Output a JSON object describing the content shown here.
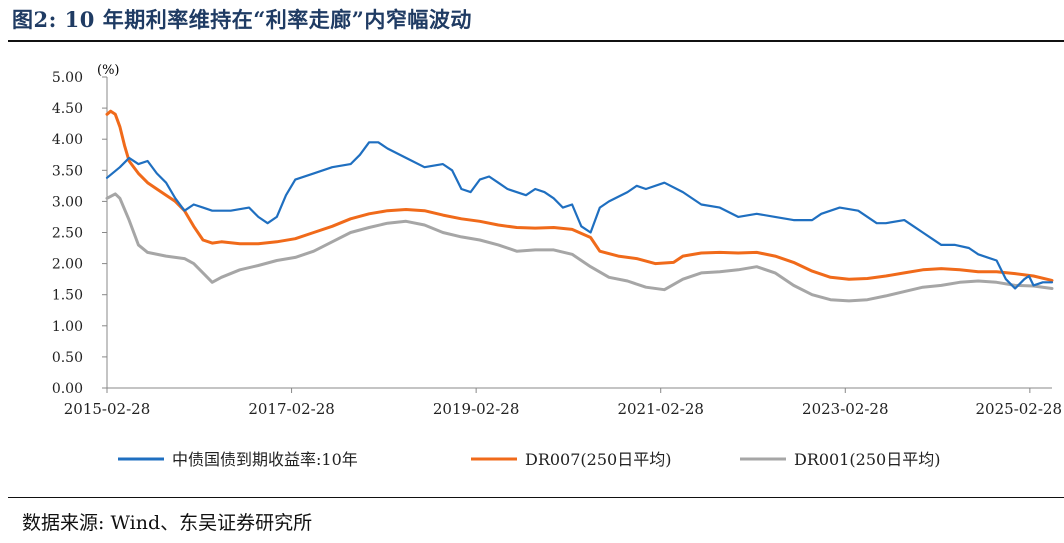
{
  "figure": {
    "title": "图2:  10 年期利率维持在“利率走廊”内窄幅波动",
    "source": "数据来源:  Wind、东吴证券研究所"
  },
  "chart_data": {
    "type": "line",
    "unit": "(%)",
    "ylim": [
      0,
      5
    ],
    "yticks": [
      "0.00",
      "0.50",
      "1.00",
      "1.50",
      "2.00",
      "2.50",
      "3.00",
      "3.50",
      "4.00",
      "4.50",
      "5.00"
    ],
    "xlim": [
      2015.16,
      2025.4
    ],
    "xticks": [
      {
        "x": 2015.16,
        "label": "2015-02-28"
      },
      {
        "x": 2017.16,
        "label": "2017-02-28"
      },
      {
        "x": 2019.16,
        "label": "2019-02-28"
      },
      {
        "x": 2021.16,
        "label": "2021-02-28"
      },
      {
        "x": 2023.16,
        "label": "2023-02-28"
      },
      {
        "x": 2025.16,
        "label": "2025-02-28"
      }
    ],
    "grid": false,
    "legend_position": "bottom",
    "series": [
      {
        "name": "中债国债到期收益率:10年",
        "color": "#1f6fc0",
        "points": [
          [
            2015.16,
            3.38
          ],
          [
            2015.3,
            3.55
          ],
          [
            2015.4,
            3.7
          ],
          [
            2015.5,
            3.6
          ],
          [
            2015.6,
            3.65
          ],
          [
            2015.7,
            3.45
          ],
          [
            2015.8,
            3.3
          ],
          [
            2015.9,
            3.05
          ],
          [
            2016.0,
            2.85
          ],
          [
            2016.1,
            2.95
          ],
          [
            2016.2,
            2.9
          ],
          [
            2016.3,
            2.85
          ],
          [
            2016.5,
            2.85
          ],
          [
            2016.7,
            2.9
          ],
          [
            2016.8,
            2.75
          ],
          [
            2016.9,
            2.65
          ],
          [
            2017.0,
            2.75
          ],
          [
            2017.1,
            3.1
          ],
          [
            2017.2,
            3.35
          ],
          [
            2017.4,
            3.45
          ],
          [
            2017.6,
            3.55
          ],
          [
            2017.8,
            3.6
          ],
          [
            2017.9,
            3.75
          ],
          [
            2018.0,
            3.95
          ],
          [
            2018.1,
            3.95
          ],
          [
            2018.2,
            3.85
          ],
          [
            2018.4,
            3.7
          ],
          [
            2018.6,
            3.55
          ],
          [
            2018.8,
            3.6
          ],
          [
            2018.9,
            3.5
          ],
          [
            2019.0,
            3.2
          ],
          [
            2019.1,
            3.15
          ],
          [
            2019.2,
            3.35
          ],
          [
            2019.3,
            3.4
          ],
          [
            2019.4,
            3.3
          ],
          [
            2019.5,
            3.2
          ],
          [
            2019.7,
            3.1
          ],
          [
            2019.8,
            3.2
          ],
          [
            2019.9,
            3.15
          ],
          [
            2020.0,
            3.05
          ],
          [
            2020.1,
            2.9
          ],
          [
            2020.2,
            2.95
          ],
          [
            2020.3,
            2.6
          ],
          [
            2020.4,
            2.5
          ],
          [
            2020.5,
            2.9
          ],
          [
            2020.6,
            3.0
          ],
          [
            2020.8,
            3.15
          ],
          [
            2020.9,
            3.25
          ],
          [
            2021.0,
            3.2
          ],
          [
            2021.2,
            3.3
          ],
          [
            2021.4,
            3.15
          ],
          [
            2021.6,
            2.95
          ],
          [
            2021.8,
            2.9
          ],
          [
            2022.0,
            2.75
          ],
          [
            2022.2,
            2.8
          ],
          [
            2022.4,
            2.75
          ],
          [
            2022.6,
            2.7
          ],
          [
            2022.8,
            2.7
          ],
          [
            2022.9,
            2.8
          ],
          [
            2023.1,
            2.9
          ],
          [
            2023.3,
            2.85
          ],
          [
            2023.5,
            2.65
          ],
          [
            2023.6,
            2.65
          ],
          [
            2023.8,
            2.7
          ],
          [
            2023.9,
            2.6
          ],
          [
            2024.0,
            2.5
          ],
          [
            2024.1,
            2.4
          ],
          [
            2024.2,
            2.3
          ],
          [
            2024.35,
            2.3
          ],
          [
            2024.5,
            2.25
          ],
          [
            2024.6,
            2.15
          ],
          [
            2024.7,
            2.1
          ],
          [
            2024.8,
            2.05
          ],
          [
            2024.9,
            1.75
          ],
          [
            2025.0,
            1.6
          ],
          [
            2025.1,
            1.75
          ],
          [
            2025.15,
            1.8
          ],
          [
            2025.2,
            1.65
          ],
          [
            2025.3,
            1.7
          ],
          [
            2025.4,
            1.7
          ]
        ]
      },
      {
        "name": "DR007(250日平均)",
        "color": "#f06a1a",
        "points": [
          [
            2015.16,
            4.4
          ],
          [
            2015.2,
            4.45
          ],
          [
            2015.25,
            4.4
          ],
          [
            2015.3,
            4.2
          ],
          [
            2015.35,
            3.9
          ],
          [
            2015.4,
            3.65
          ],
          [
            2015.5,
            3.45
          ],
          [
            2015.6,
            3.3
          ],
          [
            2015.7,
            3.2
          ],
          [
            2015.8,
            3.1
          ],
          [
            2015.9,
            3.0
          ],
          [
            2016.0,
            2.85
          ],
          [
            2016.1,
            2.6
          ],
          [
            2016.2,
            2.38
          ],
          [
            2016.3,
            2.33
          ],
          [
            2016.4,
            2.35
          ],
          [
            2016.6,
            2.32
          ],
          [
            2016.8,
            2.32
          ],
          [
            2017.0,
            2.35
          ],
          [
            2017.2,
            2.4
          ],
          [
            2017.4,
            2.5
          ],
          [
            2017.6,
            2.6
          ],
          [
            2017.8,
            2.72
          ],
          [
            2018.0,
            2.8
          ],
          [
            2018.2,
            2.85
          ],
          [
            2018.4,
            2.87
          ],
          [
            2018.6,
            2.85
          ],
          [
            2018.8,
            2.78
          ],
          [
            2019.0,
            2.72
          ],
          [
            2019.2,
            2.68
          ],
          [
            2019.4,
            2.62
          ],
          [
            2019.6,
            2.58
          ],
          [
            2019.8,
            2.57
          ],
          [
            2020.0,
            2.58
          ],
          [
            2020.2,
            2.55
          ],
          [
            2020.4,
            2.42
          ],
          [
            2020.5,
            2.2
          ],
          [
            2020.7,
            2.12
          ],
          [
            2020.9,
            2.08
          ],
          [
            2021.1,
            2.0
          ],
          [
            2021.3,
            2.02
          ],
          [
            2021.4,
            2.12
          ],
          [
            2021.6,
            2.17
          ],
          [
            2021.8,
            2.18
          ],
          [
            2022.0,
            2.17
          ],
          [
            2022.2,
            2.18
          ],
          [
            2022.4,
            2.12
          ],
          [
            2022.6,
            2.02
          ],
          [
            2022.8,
            1.88
          ],
          [
            2023.0,
            1.78
          ],
          [
            2023.2,
            1.75
          ],
          [
            2023.4,
            1.76
          ],
          [
            2023.6,
            1.8
          ],
          [
            2023.8,
            1.85
          ],
          [
            2024.0,
            1.9
          ],
          [
            2024.2,
            1.92
          ],
          [
            2024.4,
            1.9
          ],
          [
            2024.6,
            1.87
          ],
          [
            2024.8,
            1.87
          ],
          [
            2025.0,
            1.84
          ],
          [
            2025.2,
            1.8
          ],
          [
            2025.4,
            1.73
          ]
        ]
      },
      {
        "name": "DR001(250日平均)",
        "color": "#a6a6a6",
        "points": [
          [
            2015.16,
            3.05
          ],
          [
            2015.25,
            3.12
          ],
          [
            2015.3,
            3.05
          ],
          [
            2015.4,
            2.7
          ],
          [
            2015.5,
            2.3
          ],
          [
            2015.6,
            2.18
          ],
          [
            2015.8,
            2.12
          ],
          [
            2016.0,
            2.08
          ],
          [
            2016.1,
            2.0
          ],
          [
            2016.2,
            1.85
          ],
          [
            2016.3,
            1.7
          ],
          [
            2016.4,
            1.78
          ],
          [
            2016.6,
            1.9
          ],
          [
            2016.8,
            1.97
          ],
          [
            2017.0,
            2.05
          ],
          [
            2017.2,
            2.1
          ],
          [
            2017.4,
            2.2
          ],
          [
            2017.6,
            2.35
          ],
          [
            2017.8,
            2.5
          ],
          [
            2018.0,
            2.58
          ],
          [
            2018.2,
            2.65
          ],
          [
            2018.4,
            2.68
          ],
          [
            2018.6,
            2.62
          ],
          [
            2018.8,
            2.5
          ],
          [
            2019.0,
            2.43
          ],
          [
            2019.2,
            2.38
          ],
          [
            2019.4,
            2.3
          ],
          [
            2019.6,
            2.2
          ],
          [
            2019.8,
            2.22
          ],
          [
            2020.0,
            2.22
          ],
          [
            2020.2,
            2.15
          ],
          [
            2020.4,
            1.95
          ],
          [
            2020.6,
            1.78
          ],
          [
            2020.8,
            1.72
          ],
          [
            2021.0,
            1.62
          ],
          [
            2021.2,
            1.58
          ],
          [
            2021.4,
            1.75
          ],
          [
            2021.6,
            1.85
          ],
          [
            2021.8,
            1.87
          ],
          [
            2022.0,
            1.9
          ],
          [
            2022.2,
            1.95
          ],
          [
            2022.4,
            1.85
          ],
          [
            2022.6,
            1.65
          ],
          [
            2022.8,
            1.5
          ],
          [
            2023.0,
            1.42
          ],
          [
            2023.2,
            1.4
          ],
          [
            2023.4,
            1.42
          ],
          [
            2023.6,
            1.48
          ],
          [
            2023.8,
            1.55
          ],
          [
            2024.0,
            1.62
          ],
          [
            2024.2,
            1.65
          ],
          [
            2024.4,
            1.7
          ],
          [
            2024.6,
            1.72
          ],
          [
            2024.8,
            1.7
          ],
          [
            2025.0,
            1.65
          ],
          [
            2025.2,
            1.64
          ],
          [
            2025.4,
            1.6
          ]
        ]
      }
    ]
  }
}
